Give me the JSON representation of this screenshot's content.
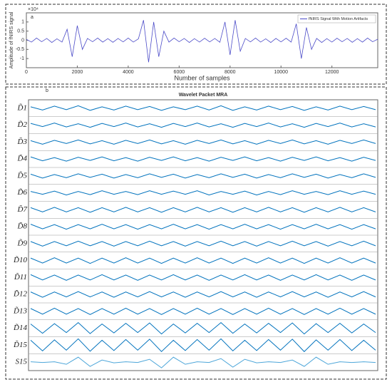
{
  "chart_data": [
    {
      "type": "line",
      "panel_label": "a",
      "y_multiplier": "×10⁴",
      "xlabel": "Number of samples",
      "ylabel": "Amplitude of fNIRS signal",
      "legend": "fNIRS Signal With Motion Artifacts",
      "color": "#4b4bc8",
      "xlim": [
        0,
        13800
      ],
      "xticks": [
        0,
        2000,
        4000,
        6000,
        8000,
        10000,
        12000
      ],
      "ylim": [
        -1.5,
        1.5
      ],
      "yticks": [
        -1,
        -0.5,
        0,
        0.5,
        1
      ],
      "x": [
        0,
        200,
        400,
        600,
        800,
        1000,
        1200,
        1400,
        1600,
        1800,
        2000,
        2200,
        2400,
        2600,
        2800,
        3000,
        3200,
        3400,
        3600,
        3800,
        4000,
        4200,
        4400,
        4600,
        4800,
        5000,
        5200,
        5400,
        5600,
        5800,
        6000,
        6200,
        6400,
        6600,
        6800,
        7000,
        7200,
        7400,
        7600,
        7800,
        8000,
        8200,
        8400,
        8600,
        8800,
        9000,
        9200,
        9400,
        9600,
        9800,
        10000,
        10200,
        10400,
        10600,
        10800,
        11000,
        11200,
        11400,
        11600,
        11800,
        12000,
        12200,
        12400,
        12600,
        12800,
        13000,
        13200,
        13400,
        13600,
        13800
      ],
      "values": [
        0.05,
        -0.1,
        0.12,
        -0.08,
        0.1,
        -0.12,
        0.08,
        -0.1,
        0.6,
        -0.9,
        0.8,
        -0.5,
        0.1,
        -0.08,
        0.12,
        -0.1,
        0.09,
        -0.11,
        0.1,
        -0.09,
        0.12,
        -0.1,
        0.08,
        1.1,
        -1.2,
        1.0,
        -0.9,
        0.5,
        -0.1,
        0.12,
        -0.08,
        0.1,
        -0.12,
        0.09,
        -0.1,
        0.11,
        -0.09,
        0.1,
        -0.11,
        1.0,
        -0.8,
        1.1,
        -0.6,
        0.1,
        -0.09,
        0.12,
        -0.1,
        0.08,
        -0.12,
        0.1,
        -0.09,
        0.11,
        -0.1,
        0.9,
        -1.0,
        0.7,
        -0.5,
        0.1,
        -0.12,
        0.09,
        -0.1,
        0.11,
        -0.08,
        0.1,
        -0.11,
        0.09,
        -0.1,
        0.12,
        -0.08,
        0.06
      ]
    },
    {
      "type": "line",
      "panel_label": "b",
      "title": "Wavelet Packet MRA",
      "series": [
        {
          "name": "D̃1",
          "color": "#0072bd",
          "values": [
            0.2,
            -0.25,
            0.3,
            -0.2,
            0.35,
            -0.3,
            0.2,
            -0.25,
            0.3,
            -0.2,
            0.25,
            -0.3,
            0.2,
            -0.2,
            0.3,
            -0.25,
            0.35,
            -0.3,
            0.2,
            -0.25,
            0.3,
            -0.2,
            0.25,
            -0.3,
            0.2,
            -0.25,
            0.3,
            -0.2,
            0.25,
            -0.2
          ]
        },
        {
          "name": "D̃2",
          "color": "#0072bd",
          "values": [
            0.25,
            -0.2,
            0.3,
            -0.25,
            0.2,
            -0.3,
            0.25,
            -0.2,
            0.3,
            -0.25,
            0.2,
            -0.3,
            0.25,
            -0.2,
            0.3,
            -0.25,
            0.2,
            -0.3,
            0.25,
            -0.2,
            0.3,
            -0.25,
            0.2,
            -0.3,
            0.25,
            -0.2,
            0.3,
            -0.25,
            0.2,
            -0.25
          ]
        },
        {
          "name": "D̃3",
          "color": "#0072bd",
          "values": [
            0.2,
            -0.3,
            0.25,
            -0.2,
            0.3,
            -0.25,
            0.2,
            -0.3,
            0.25,
            -0.2,
            0.3,
            -0.25,
            0.2,
            -0.3,
            0.25,
            -0.2,
            0.3,
            -0.25,
            0.2,
            -0.3,
            0.25,
            -0.2,
            0.3,
            -0.25,
            0.2,
            -0.3,
            0.25,
            -0.2,
            0.3,
            -0.2
          ]
        },
        {
          "name": "D̃4",
          "color": "#0072bd",
          "values": [
            0.3,
            -0.25,
            0.2,
            -0.3,
            0.25,
            -0.2,
            0.3,
            -0.25,
            0.2,
            -0.3,
            0.25,
            -0.2,
            0.3,
            -0.25,
            0.2,
            -0.3,
            0.25,
            -0.2,
            0.3,
            -0.25,
            0.2,
            -0.3,
            0.25,
            -0.2,
            0.3,
            -0.25,
            0.2,
            -0.3,
            0.25,
            -0.2
          ]
        },
        {
          "name": "D̃5",
          "color": "#0072bd",
          "values": [
            0.25,
            -0.3,
            0.2,
            -0.25,
            0.3,
            -0.2,
            0.25,
            -0.3,
            0.2,
            -0.25,
            0.3,
            -0.2,
            0.25,
            -0.3,
            0.2,
            -0.25,
            0.3,
            -0.2,
            0.25,
            -0.3,
            0.2,
            -0.25,
            0.3,
            -0.2,
            0.25,
            -0.3,
            0.2,
            -0.25,
            0.3,
            -0.2
          ]
        },
        {
          "name": "D̃6",
          "color": "#0072bd",
          "values": [
            0.2,
            -0.2,
            0.25,
            -0.3,
            0.2,
            -0.25,
            0.3,
            -0.2,
            0.2,
            -0.25,
            0.3,
            -0.2,
            0.25,
            -0.2,
            0.3,
            -0.3,
            0.2,
            -0.2,
            0.25,
            -0.3,
            0.2,
            -0.25,
            0.3,
            -0.2,
            0.2,
            -0.25,
            0.3,
            -0.2,
            0.25,
            -0.2
          ]
        },
        {
          "name": "D̃7",
          "color": "#0072bd",
          "values": [
            0.3,
            -0.3,
            0.35,
            -0.3,
            0.3,
            -0.35,
            0.3,
            -0.3,
            0.35,
            -0.3,
            0.3,
            -0.35,
            0.3,
            -0.3,
            0.35,
            -0.3,
            0.3,
            -0.35,
            0.3,
            -0.3,
            0.35,
            -0.3,
            0.3,
            -0.35,
            0.3,
            -0.3,
            0.35,
            -0.3,
            0.3,
            -0.3
          ]
        },
        {
          "name": "D̃8",
          "color": "#0072bd",
          "values": [
            0.35,
            -0.3,
            0.3,
            -0.35,
            0.3,
            -0.3,
            0.35,
            -0.3,
            0.3,
            -0.35,
            0.3,
            -0.3,
            0.35,
            -0.3,
            0.3,
            -0.35,
            0.3,
            -0.3,
            0.35,
            -0.3,
            0.3,
            -0.35,
            0.3,
            -0.3,
            0.35,
            -0.3,
            0.3,
            -0.35,
            0.3,
            -0.3
          ]
        },
        {
          "name": "D̃9",
          "color": "#0072bd",
          "values": [
            0.3,
            -0.35,
            0.3,
            -0.3,
            0.35,
            -0.3,
            0.3,
            -0.35,
            0.3,
            -0.3,
            0.35,
            -0.3,
            0.3,
            -0.35,
            0.3,
            -0.3,
            0.35,
            -0.3,
            0.3,
            -0.35,
            0.3,
            -0.3,
            0.35,
            -0.3,
            0.3,
            -0.35,
            0.3,
            -0.3,
            0.35,
            -0.3
          ]
        },
        {
          "name": "D̃10",
          "color": "#0072bd",
          "values": [
            0.35,
            -0.35,
            0.4,
            -0.35,
            0.35,
            -0.4,
            0.35,
            -0.35,
            0.4,
            -0.35,
            0.35,
            -0.4,
            0.35,
            -0.35,
            0.4,
            -0.35,
            0.35,
            -0.4,
            0.35,
            -0.35,
            0.4,
            -0.35,
            0.35,
            -0.4,
            0.35,
            -0.35,
            0.4,
            -0.35,
            0.35,
            -0.35
          ]
        },
        {
          "name": "D̃11",
          "color": "#0072bd",
          "values": [
            0.4,
            -0.35,
            0.35,
            -0.4,
            0.35,
            -0.35,
            0.4,
            -0.35,
            0.35,
            -0.4,
            0.35,
            -0.35,
            0.4,
            -0.35,
            0.35,
            -0.4,
            0.35,
            -0.35,
            0.4,
            -0.35,
            0.35,
            -0.4,
            0.35,
            -0.35,
            0.4,
            -0.35,
            0.35,
            -0.4,
            0.35,
            -0.35
          ]
        },
        {
          "name": "D̃12",
          "color": "#0072bd",
          "values": [
            0.35,
            -0.4,
            0.35,
            -0.35,
            0.4,
            -0.35,
            0.35,
            -0.4,
            0.35,
            -0.35,
            0.4,
            -0.35,
            0.35,
            -0.4,
            0.35,
            -0.35,
            0.4,
            -0.35,
            0.35,
            -0.4,
            0.35,
            -0.35,
            0.4,
            -0.35,
            0.35,
            -0.4,
            0.35,
            -0.35,
            0.4,
            -0.35
          ]
        },
        {
          "name": "D̃13",
          "color": "#0072bd",
          "values": [
            0.4,
            -0.4,
            0.45,
            -0.4,
            0.4,
            -0.45,
            0.4,
            -0.4,
            0.45,
            -0.4,
            0.4,
            -0.45,
            0.4,
            -0.4,
            0.45,
            -0.4,
            0.4,
            -0.45,
            0.4,
            -0.4,
            0.45,
            -0.4,
            0.4,
            -0.45,
            0.4,
            -0.4,
            0.45,
            -0.4,
            0.4,
            -0.4
          ]
        },
        {
          "name": "D̃14",
          "color": "#0072bd",
          "values": [
            0.6,
            -0.7,
            0.65,
            -0.6,
            0.8,
            -0.75,
            0.6,
            -0.65,
            0.7,
            -0.6,
            0.75,
            -0.8,
            0.6,
            -0.65,
            0.7,
            -0.6,
            0.8,
            -0.7,
            0.6,
            -0.65,
            0.7,
            -0.6,
            0.75,
            -0.8,
            0.65,
            -0.6,
            0.7,
            -0.65,
            0.6,
            -0.6
          ]
        },
        {
          "name": "D̃15",
          "color": "#0072bd",
          "values": [
            0.7,
            -0.8,
            0.75,
            -0.7,
            0.9,
            -0.85,
            0.7,
            -0.75,
            0.8,
            -0.7,
            0.85,
            -0.9,
            0.7,
            -0.75,
            0.8,
            -0.7,
            0.9,
            -0.8,
            0.7,
            -0.75,
            0.8,
            -0.7,
            0.85,
            -0.9,
            0.75,
            -0.7,
            0.8,
            -0.75,
            0.7,
            -0.7
          ]
        },
        {
          "name": "S15",
          "color": "#4da6d9",
          "values": [
            0.05,
            -0.05,
            0.05,
            -0.3,
            0.7,
            -0.6,
            0.3,
            -0.1,
            0.05,
            -0.05,
            0.4,
            -0.8,
            0.7,
            -0.3,
            0.05,
            -0.05,
            0.5,
            -0.7,
            0.4,
            -0.1,
            0.05,
            -0.05,
            0.3,
            -0.6,
            0.7,
            -0.3,
            0.05,
            -0.05,
            0.05,
            -0.05
          ]
        }
      ]
    }
  ]
}
